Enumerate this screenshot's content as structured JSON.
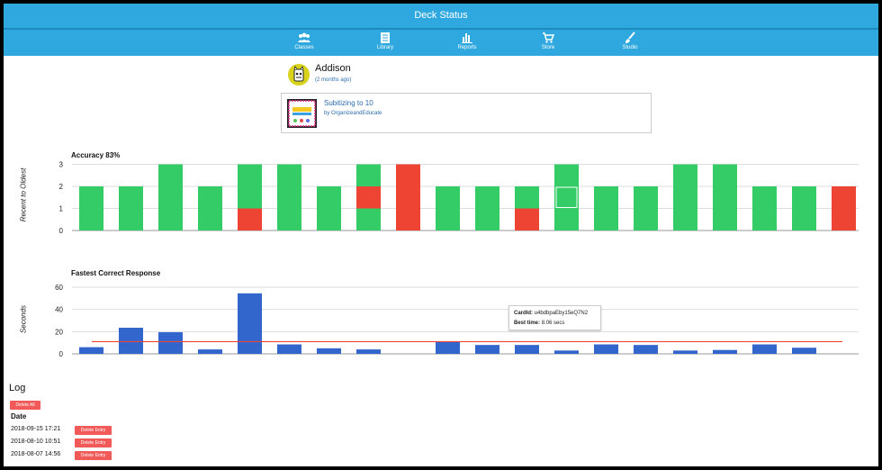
{
  "header": {
    "title": "Deck Status",
    "nav": [
      {
        "label": "Classes",
        "icon": "users-icon"
      },
      {
        "label": "Library",
        "icon": "library-icon"
      },
      {
        "label": "Reports",
        "icon": "bar-chart-icon"
      },
      {
        "label": "Store",
        "icon": "cart-icon"
      },
      {
        "label": "Studio",
        "icon": "brush-icon"
      }
    ]
  },
  "profile": {
    "name": "Addison",
    "ago": "(2 months ago)"
  },
  "deck": {
    "title": "Subitizing to 10",
    "author": "by OrganizeandEducate"
  },
  "colors": {
    "correct": "#33cc66",
    "wrong": "#ee4433",
    "time_bar": "#3366cc",
    "average_line": "#ee4433",
    "header": "#2ea8de"
  },
  "chart_data": [
    {
      "type": "bar",
      "title": "Accuracy 83%",
      "ylabel": "Recent to Oldest",
      "ylim": [
        0,
        3
      ],
      "yticks": [
        0,
        1,
        2,
        3
      ],
      "grid": true,
      "stacked": true,
      "columns": [
        [
          "c",
          "c"
        ],
        [
          "c",
          "c"
        ],
        [
          "c",
          "c",
          "c"
        ],
        [
          "c",
          "c"
        ],
        [
          "w",
          "c",
          "c"
        ],
        [
          "c",
          "c",
          "c"
        ],
        [
          "c",
          "c"
        ],
        [
          "c",
          "w",
          "c"
        ],
        [
          "w",
          "w",
          "w"
        ],
        [
          "c",
          "c"
        ],
        [
          "c",
          "c"
        ],
        [
          "w",
          "c"
        ],
        [
          "c",
          "c",
          "c"
        ],
        [
          "c",
          "c"
        ],
        [
          "c",
          "c"
        ],
        [
          "c",
          "c",
          "c"
        ],
        [
          "c",
          "c",
          "c"
        ],
        [
          "c",
          "c"
        ],
        [
          "c",
          "c"
        ],
        [
          "w",
          "w"
        ]
      ],
      "highlight": {
        "column": 12,
        "segment": 1
      }
    },
    {
      "type": "bar",
      "title": "Fastest Correct Response",
      "ylabel": "Seconds",
      "ylim": [
        0,
        60
      ],
      "yticks": [
        0,
        20,
        40,
        60
      ],
      "grid": true,
      "values": [
        6,
        23.5,
        19.5,
        4,
        54.5,
        8.5,
        5,
        4,
        null,
        11,
        8,
        8,
        3,
        8.5,
        8,
        3,
        3.5,
        8.5,
        5.5,
        null
      ],
      "average_line": 11
    }
  ],
  "tooltip": {
    "card_label": "CardId:",
    "card_value": "u4bdbpaEby15eQ7N2",
    "time_label": "Best time:",
    "time_value": "8.06 secs"
  },
  "log": {
    "heading": "Log",
    "delete_all": "Delete All",
    "date_label": "Date",
    "entries": [
      {
        "date": "2018-09-15 17:21",
        "action": "Delete Entry"
      },
      {
        "date": "2018-08-10 10:51",
        "action": "Delete Entry"
      },
      {
        "date": "2018-08-07 14:56",
        "action": "Delete Entry"
      }
    ]
  }
}
